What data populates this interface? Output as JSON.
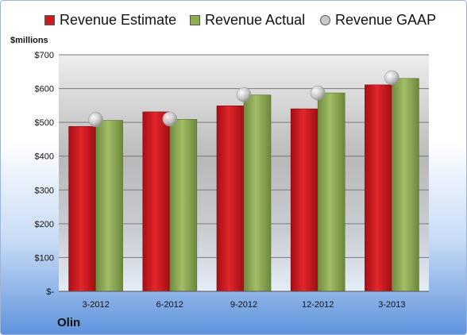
{
  "header": {
    "unit": "$millions"
  },
  "footer": {
    "company": "Olin"
  },
  "colors": {
    "estimate": "#cc1a1f",
    "actual": "#8fac55",
    "gaap": "#c8c8c8"
  },
  "chart_data": {
    "type": "bar",
    "title": "",
    "ylabel": "$millions",
    "xlabel": "",
    "categories": [
      "3-2012",
      "6-2012",
      "9-2012",
      "12-2012",
      "3-2013"
    ],
    "series": [
      {
        "name": "Revenue Estimate",
        "kind": "bar",
        "values": [
          488,
          531,
          549,
          540,
          611
        ]
      },
      {
        "name": "Revenue Actual",
        "kind": "bar",
        "values": [
          506,
          509,
          581,
          587,
          630
        ]
      },
      {
        "name": "Revenue GAAP",
        "kind": "marker",
        "values": [
          508,
          510,
          582,
          587,
          632
        ]
      }
    ],
    "ylim": [
      0,
      700
    ],
    "yticks": [
      0,
      100,
      200,
      300,
      400,
      500,
      600,
      700
    ],
    "ytick_labels": [
      "$-",
      "$100",
      "$200",
      "$300",
      "$400",
      "$500",
      "$600",
      "$700"
    ],
    "grid": true,
    "legend": "top"
  }
}
